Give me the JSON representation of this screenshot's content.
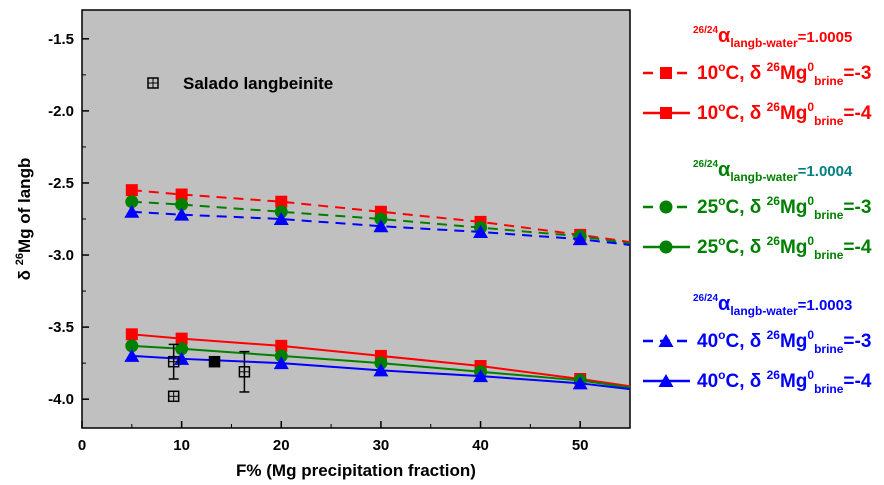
{
  "chart_data": {
    "type": "line",
    "xlabel": "F% (Mg precipitation fraction)",
    "ylabel": "δ 26Mg of langb",
    "xlim": [
      0,
      55
    ],
    "ylim": [
      -4.2,
      -1.3
    ],
    "x_ticks": [
      "0",
      "10",
      "20",
      "30",
      "40",
      "50"
    ],
    "y_ticks": [
      "-1.5",
      "-2.0",
      "-2.5",
      "-3.0",
      "-3.5",
      "-4.0"
    ],
    "background": "#c0c0c0",
    "grid": false,
    "legend_position": "right",
    "x": [
      5,
      10,
      20,
      30,
      40,
      50
    ],
    "series": [
      {
        "group": "1.0005",
        "temp": "10",
        "brine": "-3",
        "color": "#ff0000",
        "marker": "square",
        "dashed": true,
        "y": [
          -2.55,
          -2.58,
          -2.63,
          -2.7,
          -2.77,
          -2.86
        ],
        "end": -2.91
      },
      {
        "group": "1.0005",
        "temp": "10",
        "brine": "-4",
        "color": "#ff0000",
        "marker": "square",
        "dashed": false,
        "y": [
          -3.55,
          -3.58,
          -3.63,
          -3.7,
          -3.77,
          -3.86
        ],
        "end": -3.91
      },
      {
        "group": "1.0004",
        "temp": "25",
        "brine": "-3",
        "color": "#008000",
        "marker": "circle",
        "dashed": true,
        "y": [
          -2.63,
          -2.65,
          -2.7,
          -2.75,
          -2.81,
          -2.87
        ],
        "end": -2.92
      },
      {
        "group": "1.0004",
        "temp": "25",
        "brine": "-4",
        "color": "#008000",
        "marker": "circle",
        "dashed": false,
        "y": [
          -3.63,
          -3.65,
          -3.7,
          -3.75,
          -3.81,
          -3.87
        ],
        "end": -3.92
      },
      {
        "group": "1.0003",
        "temp": "40",
        "brine": "-3",
        "color": "#0000ff",
        "marker": "triangle",
        "dashed": true,
        "y": [
          -2.7,
          -2.72,
          -2.75,
          -2.8,
          -2.84,
          -2.89
        ],
        "end": -2.93
      },
      {
        "group": "1.0003",
        "temp": "40",
        "brine": "-4",
        "color": "#0000ff",
        "marker": "triangle",
        "dashed": false,
        "y": [
          -3.7,
          -3.72,
          -3.75,
          -3.8,
          -3.84,
          -3.89
        ],
        "end": -3.93
      }
    ],
    "observations": {
      "name": "Salado langbeinite",
      "points": [
        {
          "x": 9.2,
          "y": -3.98,
          "err": 0.0,
          "filled": false
        },
        {
          "x": 9.2,
          "y": -3.74,
          "err": 0.12,
          "filled": false
        },
        {
          "x": 13.3,
          "y": -3.74,
          "err": 0.0,
          "filled": true
        },
        {
          "x": 16.3,
          "y": -3.81,
          "err": 0.14,
          "filled": false
        }
      ]
    }
  },
  "legend": {
    "groups": [
      {
        "alpha_pre": "26/24",
        "alpha_sub": "langb-water",
        "alpha_value": "=1.0005",
        "color": "#ff0000",
        "entries": [
          {
            "temp": "10",
            "brine": "-3"
          },
          {
            "temp": "10",
            "brine": "-4"
          }
        ]
      },
      {
        "alpha_pre": "26/24",
        "alpha_sub": "langb-water",
        "alpha_value": "=1.0004",
        "color": "#008000",
        "value_color": "#008080",
        "entries": [
          {
            "temp": "25",
            "brine": "-3"
          },
          {
            "temp": "25",
            "brine": "-4"
          }
        ]
      },
      {
        "alpha_pre": "26/24",
        "alpha_sub": "langb-water",
        "alpha_value": "=1.0003",
        "color": "#0000ff",
        "entries": [
          {
            "temp": "40",
            "brine": "-3"
          },
          {
            "temp": "40",
            "brine": "-4"
          }
        ]
      }
    ]
  }
}
